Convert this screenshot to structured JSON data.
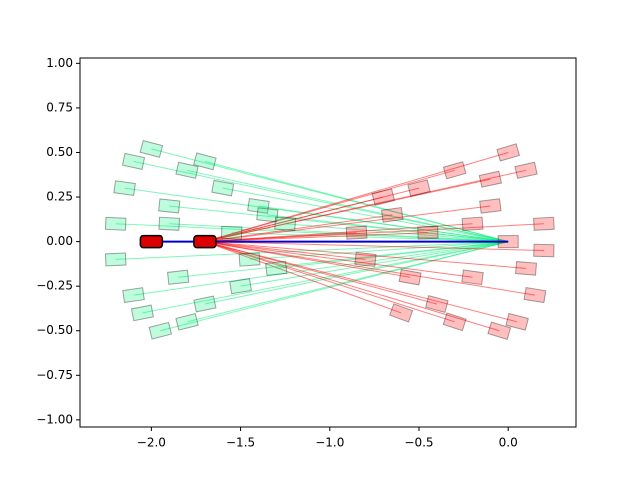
{
  "chart_data": {
    "type": "scatter",
    "xlim": [
      -2.4,
      0.38
    ],
    "ylim": [
      -1.04,
      1.03
    ],
    "xticks": [
      {
        "value": -2.0,
        "label": "−2.0"
      },
      {
        "value": -1.5,
        "label": "−1.5"
      },
      {
        "value": -1.0,
        "label": "−1.0"
      },
      {
        "value": -0.5,
        "label": "−0.5"
      },
      {
        "value": 0.0,
        "label": "0.0"
      }
    ],
    "yticks": [
      {
        "value": -1.0,
        "label": "−1.00"
      },
      {
        "value": -0.75,
        "label": "−0.75"
      },
      {
        "value": -0.5,
        "label": "−0.50"
      },
      {
        "value": -0.25,
        "label": "−0.25"
      },
      {
        "value": 0.0,
        "label": "0.00"
      },
      {
        "value": 0.25,
        "label": "0.25"
      },
      {
        "value": 0.5,
        "label": "0.50"
      },
      {
        "value": 0.75,
        "label": "0.75"
      },
      {
        "value": 1.0,
        "label": "1.00"
      }
    ],
    "series": [
      {
        "color": "#00ee77",
        "x": [
          -2.2,
          -2.15,
          -2.1,
          -2.05,
          -2.0,
          -1.95,
          -1.9,
          -1.85,
          -1.8,
          -1.7,
          -1.6,
          -1.5,
          -1.4,
          -1.3,
          -2.2,
          -2.1,
          -2.0,
          -1.9,
          -1.8,
          -1.7,
          -1.55,
          -1.45,
          -1.35,
          -1.25
        ],
        "y": [
          0.1,
          0.3,
          0.45,
          -0.4,
          0.52,
          -0.5,
          0.2,
          -0.2,
          0.4,
          -0.35,
          0.3,
          -0.25,
          0.2,
          -0.15,
          -0.1,
          -0.3,
          0.0,
          0.1,
          -0.45,
          0.45,
          0.05,
          -0.1,
          0.15,
          0.1
        ]
      },
      {
        "color": "#ff0000",
        "x": [
          0.2,
          0.15,
          0.1,
          0.05,
          0.0,
          -0.05,
          -0.1,
          -0.2,
          -0.3,
          -0.4,
          -0.5,
          -0.6,
          -0.7,
          -0.8,
          0.2,
          0.1,
          0.0,
          -0.1,
          -0.2,
          -0.3,
          -0.45,
          -0.55,
          -0.65,
          -0.85
        ],
        "y": [
          0.1,
          -0.3,
          0.4,
          -0.45,
          0.5,
          -0.5,
          0.2,
          -0.2,
          0.4,
          -0.35,
          0.3,
          -0.4,
          0.25,
          -0.1,
          -0.05,
          -0.15,
          0.0,
          0.35,
          0.1,
          -0.45,
          0.05,
          -0.2,
          0.15,
          0.05
        ]
      }
    ],
    "path": {
      "color": "#0000cc",
      "x": [
        -2.0,
        0.0
      ],
      "y": [
        0,
        0
      ]
    },
    "markers": {
      "color": "#dd0000",
      "x": [
        -2.0,
        -1.7
      ],
      "y": [
        0,
        0
      ]
    }
  }
}
